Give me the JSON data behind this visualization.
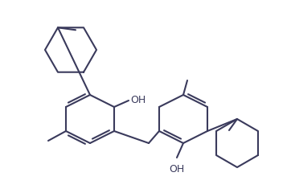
{
  "background": "#ffffff",
  "line_color": "#3a3a5c",
  "line_width": 1.5,
  "font_size": 9,
  "fig_width": 3.62,
  "fig_height": 2.4,
  "dpi": 100
}
